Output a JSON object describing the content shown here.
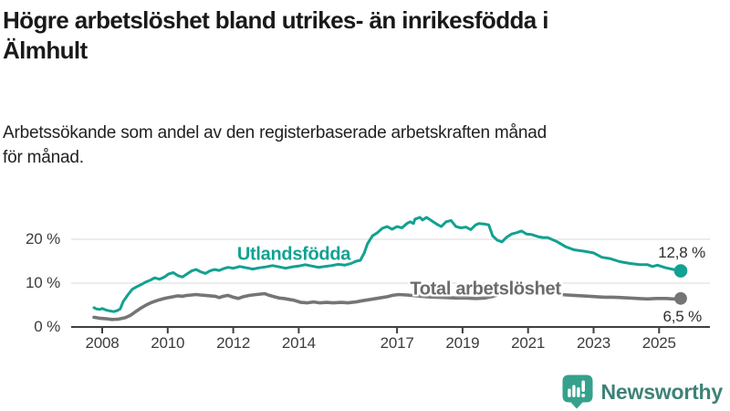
{
  "header": {
    "title": "Högre arbetslöshet bland utrikes- än inrikesfödda i\nÄlmhult",
    "subtitle": "Arbetssökande som andel av den registerbaserade arbetskraften månad\nför månad."
  },
  "chart_data": {
    "type": "line",
    "unit": "%",
    "grid": "horizontal",
    "x_tick_labels": [
      "2008",
      "2010",
      "2012",
      "2014",
      "2017",
      "2019",
      "2021",
      "2023",
      "2025"
    ],
    "x_tick_years": [
      2008,
      2010,
      2012,
      2014,
      2017,
      2019,
      2021,
      2023,
      2025
    ],
    "y_ticks": [
      {
        "value": 0,
        "label": "0 %"
      },
      {
        "value": 10,
        "label": "10 %"
      },
      {
        "value": 20,
        "label": "20 %"
      }
    ],
    "x_range": [
      2007.6,
      2026.1
    ],
    "y_range": [
      0,
      27
    ],
    "series": [
      {
        "name": "Utlandsfödda",
        "color": "#12a192",
        "end_label": "12,8 %",
        "end_value": 12.8,
        "points": [
          [
            2007.75,
            4.4
          ],
          [
            2007.83,
            4.1
          ],
          [
            2007.92,
            4.0
          ],
          [
            2008.0,
            4.2
          ],
          [
            2008.1,
            3.9
          ],
          [
            2008.2,
            3.7
          ],
          [
            2008.35,
            3.5
          ],
          [
            2008.45,
            3.7
          ],
          [
            2008.55,
            4.1
          ],
          [
            2008.64,
            5.8
          ],
          [
            2008.78,
            7.3
          ],
          [
            2008.92,
            8.6
          ],
          [
            2009.06,
            9.2
          ],
          [
            2009.2,
            9.7
          ],
          [
            2009.34,
            10.3
          ],
          [
            2009.48,
            10.7
          ],
          [
            2009.6,
            11.2
          ],
          [
            2009.75,
            10.9
          ],
          [
            2009.9,
            11.4
          ],
          [
            2010.03,
            12.1
          ],
          [
            2010.17,
            12.4
          ],
          [
            2010.31,
            11.7
          ],
          [
            2010.45,
            11.4
          ],
          [
            2010.59,
            12.1
          ],
          [
            2010.73,
            12.8
          ],
          [
            2010.87,
            13.1
          ],
          [
            2011.0,
            12.6
          ],
          [
            2011.15,
            12.2
          ],
          [
            2011.29,
            12.8
          ],
          [
            2011.43,
            13.1
          ],
          [
            2011.57,
            12.9
          ],
          [
            2011.7,
            13.3
          ],
          [
            2011.84,
            13.6
          ],
          [
            2012.0,
            13.4
          ],
          [
            2012.2,
            13.8
          ],
          [
            2012.4,
            13.5
          ],
          [
            2012.6,
            13.2
          ],
          [
            2012.8,
            13.5
          ],
          [
            2013.0,
            13.7
          ],
          [
            2013.2,
            14.0
          ],
          [
            2013.4,
            13.7
          ],
          [
            2013.6,
            13.4
          ],
          [
            2013.8,
            13.7
          ],
          [
            2014.0,
            13.9
          ],
          [
            2014.2,
            14.2
          ],
          [
            2014.4,
            13.9
          ],
          [
            2014.6,
            13.6
          ],
          [
            2014.8,
            13.8
          ],
          [
            2015.0,
            14.0
          ],
          [
            2015.2,
            14.3
          ],
          [
            2015.4,
            14.1
          ],
          [
            2015.6,
            14.5
          ],
          [
            2015.75,
            15.0
          ],
          [
            2015.88,
            15.2
          ],
          [
            2016.0,
            16.9
          ],
          [
            2016.1,
            19.0
          ],
          [
            2016.25,
            20.8
          ],
          [
            2016.4,
            21.5
          ],
          [
            2016.55,
            22.5
          ],
          [
            2016.7,
            22.9
          ],
          [
            2016.85,
            22.3
          ],
          [
            2017.0,
            22.9
          ],
          [
            2017.15,
            22.6
          ],
          [
            2017.3,
            23.6
          ],
          [
            2017.4,
            24.0
          ],
          [
            2017.5,
            23.6
          ],
          [
            2017.55,
            24.6
          ],
          [
            2017.7,
            25.0
          ],
          [
            2017.78,
            24.4
          ],
          [
            2017.9,
            25.0
          ],
          [
            2018.1,
            24.0
          ],
          [
            2018.25,
            23.3
          ],
          [
            2018.35,
            22.9
          ],
          [
            2018.5,
            24.0
          ],
          [
            2018.65,
            24.3
          ],
          [
            2018.8,
            22.9
          ],
          [
            2018.95,
            22.6
          ],
          [
            2019.1,
            22.8
          ],
          [
            2019.25,
            22.2
          ],
          [
            2019.4,
            23.3
          ],
          [
            2019.5,
            23.6
          ],
          [
            2019.65,
            23.5
          ],
          [
            2019.8,
            23.3
          ],
          [
            2019.92,
            20.8
          ],
          [
            2020.06,
            19.8
          ],
          [
            2020.2,
            19.4
          ],
          [
            2020.35,
            20.5
          ],
          [
            2020.5,
            21.2
          ],
          [
            2020.65,
            21.5
          ],
          [
            2020.8,
            21.9
          ],
          [
            2020.95,
            21.2
          ],
          [
            2021.1,
            21.1
          ],
          [
            2021.3,
            20.6
          ],
          [
            2021.45,
            20.4
          ],
          [
            2021.6,
            20.4
          ],
          [
            2021.75,
            19.9
          ],
          [
            2021.9,
            19.4
          ],
          [
            2022.15,
            18.3
          ],
          [
            2022.4,
            17.6
          ],
          [
            2022.7,
            17.3
          ],
          [
            2023.0,
            16.9
          ],
          [
            2023.25,
            15.9
          ],
          [
            2023.5,
            15.6
          ],
          [
            2023.8,
            14.9
          ],
          [
            2024.1,
            14.5
          ],
          [
            2024.4,
            14.2
          ],
          [
            2024.65,
            14.2
          ],
          [
            2024.8,
            13.8
          ],
          [
            2024.95,
            14.1
          ],
          [
            2025.2,
            13.5
          ],
          [
            2025.45,
            13.1
          ],
          [
            2025.66,
            12.8
          ]
        ]
      },
      {
        "name": "Total arbetslöshet",
        "color": "#757575",
        "end_label": "6,5 %",
        "end_value": 6.5,
        "points": [
          [
            2007.75,
            2.2
          ],
          [
            2007.92,
            2.0
          ],
          [
            2008.1,
            1.9
          ],
          [
            2008.3,
            1.7
          ],
          [
            2008.5,
            1.8
          ],
          [
            2008.7,
            2.1
          ],
          [
            2008.85,
            2.6
          ],
          [
            2008.95,
            3.1
          ],
          [
            2009.06,
            3.7
          ],
          [
            2009.2,
            4.4
          ],
          [
            2009.34,
            5.0
          ],
          [
            2009.48,
            5.5
          ],
          [
            2009.62,
            5.9
          ],
          [
            2009.75,
            6.2
          ],
          [
            2009.9,
            6.5
          ],
          [
            2010.03,
            6.7
          ],
          [
            2010.17,
            6.9
          ],
          [
            2010.31,
            7.1
          ],
          [
            2010.45,
            7.0
          ],
          [
            2010.59,
            7.2
          ],
          [
            2010.73,
            7.3
          ],
          [
            2010.87,
            7.4
          ],
          [
            2011.0,
            7.3
          ],
          [
            2011.15,
            7.2
          ],
          [
            2011.3,
            7.1
          ],
          [
            2011.45,
            7.0
          ],
          [
            2011.57,
            6.7
          ],
          [
            2011.7,
            7.0
          ],
          [
            2011.84,
            7.2
          ],
          [
            2012.0,
            6.8
          ],
          [
            2012.15,
            6.5
          ],
          [
            2012.3,
            6.9
          ],
          [
            2012.5,
            7.2
          ],
          [
            2012.7,
            7.4
          ],
          [
            2012.96,
            7.6
          ],
          [
            2013.1,
            7.2
          ],
          [
            2013.25,
            6.9
          ],
          [
            2013.4,
            6.6
          ],
          [
            2013.55,
            6.5
          ],
          [
            2013.7,
            6.3
          ],
          [
            2013.85,
            6.1
          ],
          [
            2014.07,
            5.6
          ],
          [
            2014.25,
            5.5
          ],
          [
            2014.45,
            5.7
          ],
          [
            2014.65,
            5.5
          ],
          [
            2014.85,
            5.6
          ],
          [
            2015.05,
            5.5
          ],
          [
            2015.3,
            5.6
          ],
          [
            2015.5,
            5.5
          ],
          [
            2015.74,
            5.7
          ],
          [
            2015.95,
            6.0
          ],
          [
            2016.2,
            6.3
          ],
          [
            2016.45,
            6.6
          ],
          [
            2016.7,
            6.9
          ],
          [
            2016.86,
            7.2
          ],
          [
            2017.05,
            7.4
          ],
          [
            2017.3,
            7.3
          ],
          [
            2017.6,
            7.1
          ],
          [
            2017.9,
            6.9
          ],
          [
            2018.2,
            6.8
          ],
          [
            2018.5,
            6.7
          ],
          [
            2018.8,
            6.6
          ],
          [
            2019.1,
            6.6
          ],
          [
            2019.4,
            6.5
          ],
          [
            2019.7,
            6.6
          ],
          [
            2019.95,
            7.0
          ],
          [
            2020.2,
            7.8
          ],
          [
            2020.4,
            8.8
          ],
          [
            2020.6,
            8.7
          ],
          [
            2020.8,
            8.5
          ],
          [
            2021.0,
            8.3
          ],
          [
            2021.25,
            8.1
          ],
          [
            2021.5,
            7.8
          ],
          [
            2021.75,
            7.6
          ],
          [
            2022.0,
            7.4
          ],
          [
            2022.2,
            7.3
          ],
          [
            2022.4,
            7.2
          ],
          [
            2022.65,
            7.1
          ],
          [
            2022.9,
            7.0
          ],
          [
            2023.1,
            6.9
          ],
          [
            2023.35,
            6.8
          ],
          [
            2023.6,
            6.8
          ],
          [
            2023.85,
            6.7
          ],
          [
            2024.1,
            6.6
          ],
          [
            2024.35,
            6.5
          ],
          [
            2024.65,
            6.4
          ],
          [
            2024.9,
            6.5
          ],
          [
            2025.2,
            6.5
          ],
          [
            2025.45,
            6.4
          ],
          [
            2025.66,
            6.5
          ]
        ]
      }
    ]
  },
  "logo": {
    "brand": "Newsworthy",
    "icon": "newsworthy-pin-barchart-icon",
    "accent_color": "#35a18c",
    "text_color": "#3f8277"
  },
  "style": {
    "grid_color": "#d9d9d9",
    "axis_color": "#404040"
  }
}
